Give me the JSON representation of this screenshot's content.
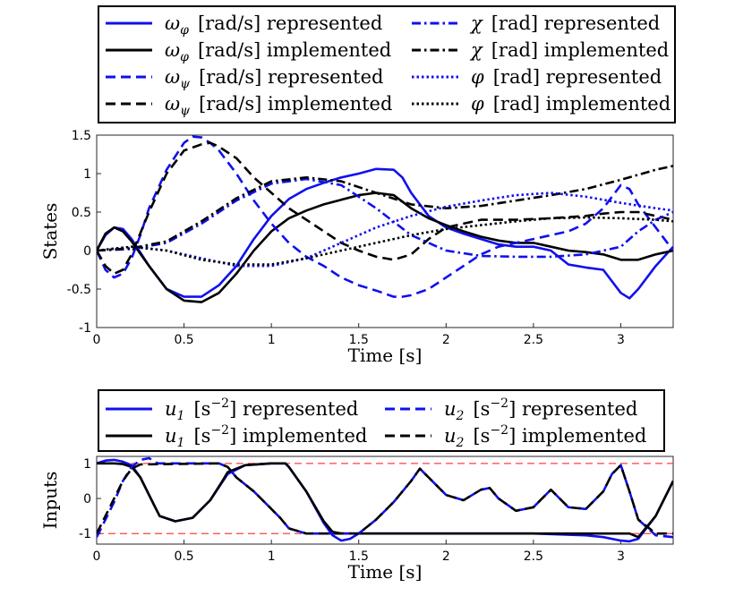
{
  "chart_data": [
    {
      "type": "line",
      "ylabel": "States",
      "xlabel": "Time [s]",
      "xlim": [
        0,
        3.3
      ],
      "ylim": [
        -1,
        1.5
      ],
      "xticks": [
        0,
        0.5,
        1,
        1.5,
        2,
        2.5,
        3
      ],
      "xtick_labels": [
        "0",
        "0.5",
        "1",
        "1.5",
        "2",
        "2.5",
        "3"
      ],
      "yticks": [
        -1,
        -0.5,
        0,
        0.5,
        1,
        1.5
      ],
      "ytick_labels": [
        "-1",
        "-0.5",
        "0",
        "0.5",
        "1",
        "1.5"
      ],
      "legend_position": "top-outside",
      "series": [
        {
          "name": "omega_phi [rad/s] represented",
          "legend_symbol": "ω",
          "legend_sub": "φ",
          "legend_rest": "[rad/s] represented",
          "color": "#1010ee",
          "style": "solid",
          "x": [
            0,
            0.05,
            0.1,
            0.15,
            0.2,
            0.3,
            0.4,
            0.5,
            0.6,
            0.7,
            0.8,
            0.9,
            1.0,
            1.1,
            1.2,
            1.3,
            1.4,
            1.5,
            1.6,
            1.7,
            1.75,
            1.8,
            1.9,
            2.0,
            2.1,
            2.2,
            2.3,
            2.4,
            2.5,
            2.6,
            2.7,
            2.8,
            2.9,
            3.0,
            3.05,
            3.1,
            3.2,
            3.3
          ],
          "y": [
            0,
            0.2,
            0.3,
            0.28,
            0.15,
            -0.2,
            -0.5,
            -0.6,
            -0.6,
            -0.45,
            -0.2,
            0.15,
            0.45,
            0.67,
            0.8,
            0.88,
            0.95,
            1.0,
            1.06,
            1.05,
            0.95,
            0.75,
            0.45,
            0.3,
            0.22,
            0.15,
            0.08,
            0.05,
            0.05,
            0.0,
            -0.18,
            -0.22,
            -0.25,
            -0.55,
            -0.62,
            -0.5,
            -0.2,
            0.05
          ]
        },
        {
          "name": "omega_phi [rad/s] implemented",
          "legend_symbol": "ω",
          "legend_sub": "φ",
          "legend_rest": "[rad/s] implemented",
          "color": "#000000",
          "style": "solid",
          "x": [
            0,
            0.05,
            0.1,
            0.15,
            0.2,
            0.3,
            0.4,
            0.5,
            0.6,
            0.7,
            0.8,
            0.9,
            1.0,
            1.1,
            1.2,
            1.3,
            1.4,
            1.5,
            1.6,
            1.7,
            1.8,
            1.9,
            2.0,
            2.1,
            2.2,
            2.3,
            2.4,
            2.5,
            2.6,
            2.7,
            2.8,
            2.9,
            3.0,
            3.1,
            3.2,
            3.3
          ],
          "y": [
            0,
            0.22,
            0.3,
            0.25,
            0.12,
            -0.2,
            -0.5,
            -0.65,
            -0.67,
            -0.55,
            -0.3,
            0.0,
            0.25,
            0.42,
            0.52,
            0.6,
            0.66,
            0.72,
            0.75,
            0.72,
            0.55,
            0.42,
            0.33,
            0.25,
            0.18,
            0.13,
            0.1,
            0.1,
            0.05,
            0.0,
            -0.02,
            -0.05,
            -0.12,
            -0.12,
            -0.05,
            0.0
          ]
        },
        {
          "name": "omega_psi [rad/s] represented",
          "legend_symbol": "ω",
          "legend_sub": "ψ",
          "legend_rest": "[rad/s] represented",
          "color": "#1010ee",
          "style": "dashed",
          "x": [
            0,
            0.05,
            0.1,
            0.15,
            0.2,
            0.25,
            0.3,
            0.4,
            0.5,
            0.55,
            0.6,
            0.65,
            0.7,
            0.8,
            0.9,
            1.0,
            1.1,
            1.2,
            1.3,
            1.4,
            1.5,
            1.6,
            1.7,
            1.75,
            1.8,
            1.9,
            2.0,
            2.1,
            2.2,
            2.3,
            2.4,
            2.5,
            2.6,
            2.7,
            2.8,
            2.9,
            2.95,
            3.0,
            3.05,
            3.1,
            3.2,
            3.3
          ],
          "y": [
            0,
            -0.25,
            -0.35,
            -0.3,
            -0.1,
            0.2,
            0.55,
            1.05,
            1.4,
            1.48,
            1.47,
            1.4,
            1.3,
            1.0,
            0.65,
            0.35,
            0.1,
            -0.08,
            -0.2,
            -0.35,
            -0.45,
            -0.52,
            -0.6,
            -0.6,
            -0.58,
            -0.5,
            -0.35,
            -0.2,
            -0.05,
            0.05,
            0.1,
            0.15,
            0.2,
            0.25,
            0.35,
            0.55,
            0.7,
            0.85,
            0.8,
            0.6,
            0.3,
            0.0
          ]
        },
        {
          "name": "omega_psi [rad/s] implemented",
          "legend_symbol": "ω",
          "legend_sub": "ψ",
          "legend_rest": "[rad/s] implemented",
          "color": "#000000",
          "style": "dashed",
          "x": [
            0,
            0.05,
            0.1,
            0.15,
            0.2,
            0.3,
            0.4,
            0.5,
            0.6,
            0.65,
            0.7,
            0.8,
            0.9,
            1.0,
            1.1,
            1.2,
            1.3,
            1.4,
            1.5,
            1.6,
            1.7,
            1.8,
            1.9,
            2.0,
            2.2,
            2.4,
            2.6,
            2.8,
            2.9,
            3.0,
            3.1,
            3.2,
            3.3
          ],
          "y": [
            0,
            -0.2,
            -0.3,
            -0.25,
            -0.05,
            0.5,
            1.0,
            1.3,
            1.38,
            1.4,
            1.35,
            1.2,
            0.95,
            0.75,
            0.55,
            0.4,
            0.25,
            0.1,
            0.0,
            -0.08,
            -0.12,
            -0.05,
            0.15,
            0.3,
            0.4,
            0.4,
            0.42,
            0.45,
            0.48,
            0.5,
            0.5,
            0.45,
            0.4
          ]
        },
        {
          "name": "chi [rad] represented",
          "legend_symbol": "χ",
          "legend_sub": "",
          "legend_rest": "[rad] represented",
          "color": "#1010ee",
          "style": "dashdot",
          "x": [
            0,
            0.2,
            0.4,
            0.6,
            0.8,
            1.0,
            1.2,
            1.4,
            1.6,
            1.8,
            2.0,
            2.2,
            2.4,
            2.6,
            2.8,
            3.0,
            3.1,
            3.2,
            3.3
          ],
          "y": [
            0,
            0.02,
            0.1,
            0.35,
            0.65,
            0.87,
            0.93,
            0.85,
            0.55,
            0.2,
            0.0,
            -0.07,
            -0.08,
            -0.08,
            -0.05,
            0.05,
            0.25,
            0.4,
            0.5
          ]
        },
        {
          "name": "chi [rad] implemented",
          "legend_symbol": "χ",
          "legend_sub": "",
          "legend_rest": "[rad] implemented",
          "color": "#000000",
          "style": "dashdot",
          "x": [
            0,
            0.2,
            0.4,
            0.6,
            0.8,
            1.0,
            1.2,
            1.4,
            1.6,
            1.8,
            2.0,
            2.2,
            2.4,
            2.6,
            2.8,
            3.0,
            3.2,
            3.3
          ],
          "y": [
            0,
            0.03,
            0.12,
            0.38,
            0.68,
            0.9,
            0.95,
            0.9,
            0.75,
            0.6,
            0.55,
            0.58,
            0.65,
            0.72,
            0.8,
            0.92,
            1.05,
            1.1
          ]
        },
        {
          "name": "phi [rad] represented",
          "legend_symbol": "φ",
          "legend_sub": "",
          "legend_rest": "[rad] represented",
          "color": "#1010ee",
          "style": "dotted",
          "x": [
            0,
            0.2,
            0.4,
            0.6,
            0.8,
            1.0,
            1.2,
            1.4,
            1.6,
            1.8,
            2.0,
            2.2,
            2.4,
            2.6,
            2.8,
            3.0,
            3.2,
            3.3
          ],
          "y": [
            0,
            0.05,
            0.0,
            -0.1,
            -0.2,
            -0.2,
            -0.1,
            0.1,
            0.3,
            0.45,
            0.57,
            0.65,
            0.72,
            0.75,
            0.7,
            0.62,
            0.55,
            0.52
          ]
        },
        {
          "name": "phi [rad] implemented",
          "legend_symbol": "φ",
          "legend_sub": "",
          "legend_rest": "[rad] implemented",
          "color": "#000000",
          "style": "dotted",
          "x": [
            0,
            0.2,
            0.4,
            0.6,
            0.8,
            1.0,
            1.2,
            1.4,
            1.6,
            1.8,
            2.0,
            2.2,
            2.4,
            2.6,
            2.8,
            3.0,
            3.2,
            3.3
          ],
          "y": [
            0,
            0.05,
            0.0,
            -0.12,
            -0.18,
            -0.18,
            -0.1,
            0.0,
            0.1,
            0.2,
            0.28,
            0.33,
            0.38,
            0.42,
            0.43,
            0.42,
            0.4,
            0.38
          ]
        }
      ]
    },
    {
      "type": "line",
      "ylabel": "Inputs",
      "xlabel": "Time [s]",
      "xlim": [
        0,
        3.3
      ],
      "ylim": [
        -1.3,
        1.2
      ],
      "xticks": [
        0,
        0.5,
        1,
        1.5,
        2,
        2.5,
        3
      ],
      "xtick_labels": [
        "0",
        "0.5",
        "1",
        "1.5",
        "2",
        "2.5",
        "3"
      ],
      "yticks": [
        -1,
        0,
        1
      ],
      "ytick_labels": [
        "-1",
        "0",
        "1"
      ],
      "reference_lines": [
        1,
        -1
      ],
      "reference_color": "#ff4040",
      "legend_position": "top-outside",
      "series": [
        {
          "name": "u1 [s^-2] represented",
          "legend_symbol": "u",
          "legend_sub": "1",
          "legend_rest": "[s",
          "legend_sup": "−2",
          "legend_tail": "] represented",
          "color": "#1010ee",
          "style": "solid",
          "x": [
            0,
            0.05,
            0.1,
            0.15,
            0.2,
            0.25,
            0.3,
            0.33,
            0.36,
            0.45,
            0.55,
            0.65,
            0.75,
            0.85,
            1.0,
            1.08,
            1.1,
            1.2,
            1.3,
            1.35,
            1.4,
            1.45,
            1.5,
            1.6,
            2.0,
            2.5,
            2.8,
            2.9,
            3.0,
            3.05,
            3.1,
            3.2,
            3.3
          ],
          "y": [
            1,
            1.08,
            1.1,
            1.05,
            0.95,
            0.6,
            0.1,
            -0.2,
            -0.5,
            -0.65,
            -0.55,
            -0.05,
            0.7,
            0.95,
            1.0,
            1.0,
            0.9,
            0.2,
            -0.7,
            -1.05,
            -1.2,
            -1.15,
            -1.0,
            -1.0,
            -1.0,
            -1.0,
            -1.05,
            -1.1,
            -1.2,
            -1.22,
            -1.15,
            -0.5,
            0.5
          ]
        },
        {
          "name": "u1 [s^-2] implemented",
          "legend_symbol": "u",
          "legend_sub": "1",
          "legend_rest": "[s",
          "legend_sup": "−2",
          "legend_tail": "] implemented",
          "color": "#000000",
          "style": "solid",
          "x": [
            0,
            0.1,
            0.15,
            0.2,
            0.25,
            0.3,
            0.33,
            0.36,
            0.45,
            0.55,
            0.65,
            0.72,
            0.75,
            0.85,
            1.0,
            1.08,
            1.1,
            1.2,
            1.3,
            1.35,
            1.4,
            1.45,
            1.5,
            1.6,
            2.0,
            2.5,
            2.9,
            3.0,
            3.05,
            3.1,
            3.2,
            3.3
          ],
          "y": [
            1,
            1,
            0.98,
            0.9,
            0.6,
            0.1,
            -0.2,
            -0.5,
            -0.65,
            -0.55,
            -0.05,
            0.5,
            0.75,
            0.95,
            1.0,
            1.0,
            0.9,
            0.2,
            -0.65,
            -0.95,
            -1.0,
            -1.0,
            -1.0,
            -1.0,
            -1.0,
            -1.0,
            -1.0,
            -1.0,
            -1.0,
            -1.1,
            -0.5,
            0.5
          ]
        },
        {
          "name": "u2 [s^-2] represented",
          "legend_symbol": "u",
          "legend_sub": "2",
          "legend_rest": "[s",
          "legend_sup": "−2",
          "legend_tail": "] represented",
          "color": "#1010ee",
          "style": "dashed",
          "x": [
            0,
            0.05,
            0.1,
            0.15,
            0.2,
            0.25,
            0.3,
            0.35,
            0.7,
            0.75,
            0.8,
            0.9,
            1.0,
            1.05,
            1.1,
            1.2,
            1.3,
            1.5,
            1.6,
            1.7,
            1.8,
            1.85,
            1.9,
            2.0,
            2.1,
            2.2,
            2.25,
            2.3,
            2.4,
            2.5,
            2.6,
            2.7,
            2.8,
            2.9,
            2.95,
            3.0,
            3.05,
            3.1,
            3.2,
            3.3
          ],
          "y": [
            -1.1,
            -0.6,
            -0.1,
            0.5,
            0.9,
            1.1,
            1.15,
            1.0,
            1.0,
            0.9,
            0.6,
            0.2,
            -0.3,
            -0.55,
            -0.85,
            -1.0,
            -1.0,
            -1.0,
            -0.6,
            -0.1,
            0.5,
            0.85,
            0.6,
            0.1,
            -0.05,
            0.25,
            0.3,
            0.0,
            -0.35,
            -0.25,
            0.25,
            -0.25,
            -0.3,
            0.2,
            0.7,
            0.95,
            0.2,
            -0.6,
            -1.05,
            -1.1
          ]
        },
        {
          "name": "u2 [s^-2] implemented",
          "legend_symbol": "u",
          "legend_sub": "2",
          "legend_rest": "[s",
          "legend_sup": "−2",
          "legend_tail": "] implemented",
          "color": "#000000",
          "style": "dashed",
          "x": [
            0,
            0.05,
            0.1,
            0.15,
            0.2,
            0.25,
            0.7,
            0.75,
            0.8,
            0.9,
            1.0,
            1.05,
            1.1,
            1.2,
            1.3,
            1.5,
            1.6,
            1.7,
            1.8,
            1.85,
            1.9,
            2.0,
            2.1,
            2.2,
            2.25,
            2.3,
            2.4,
            2.5,
            2.6,
            2.7,
            2.8,
            2.9,
            2.95,
            3.0,
            3.05,
            3.1,
            3.2,
            3.3
          ],
          "y": [
            -1.0,
            -0.5,
            0.0,
            0.5,
            0.85,
            0.97,
            1.0,
            0.9,
            0.6,
            0.2,
            -0.3,
            -0.55,
            -0.85,
            -1.0,
            -1.0,
            -1.0,
            -0.6,
            -0.1,
            0.5,
            0.85,
            0.6,
            0.1,
            -0.05,
            0.25,
            0.3,
            0.0,
            -0.35,
            -0.25,
            0.25,
            -0.25,
            -0.3,
            0.2,
            0.7,
            0.95,
            0.2,
            -0.6,
            -1.0,
            -1.0
          ]
        }
      ]
    }
  ]
}
